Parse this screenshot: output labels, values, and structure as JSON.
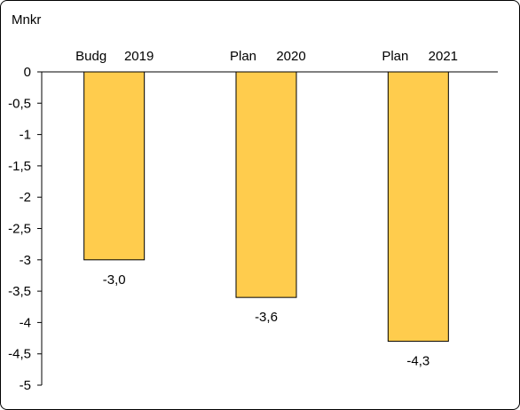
{
  "chart_data": {
    "type": "bar",
    "title": "",
    "ylabel": "Mnkr",
    "xlabel": "",
    "categories": [
      {
        "label": "Budg",
        "year": "2019"
      },
      {
        "label": "Plan",
        "year": "2020"
      },
      {
        "label": "Plan",
        "year": "2021"
      }
    ],
    "values": [
      -3.0,
      -3.6,
      -4.3
    ],
    "value_labels": [
      "-3,0",
      "-3,6",
      "-4,3"
    ],
    "ylim": [
      -5,
      0
    ],
    "y_ticks": [
      0,
      -0.5,
      -1,
      -1.5,
      -2,
      -2.5,
      -3,
      -3.5,
      -4,
      -4.5,
      -5
    ],
    "y_tick_labels": [
      "0",
      "-0,5",
      "-1",
      "-1,5",
      "-2",
      "-2,5",
      "-3",
      "-3,5",
      "-4",
      "-4,5",
      "-5"
    ],
    "category_label_position": "top",
    "grid": false,
    "legend": "none",
    "bar_color": "#FFCC4D",
    "bar_edge_color": "#000000"
  }
}
